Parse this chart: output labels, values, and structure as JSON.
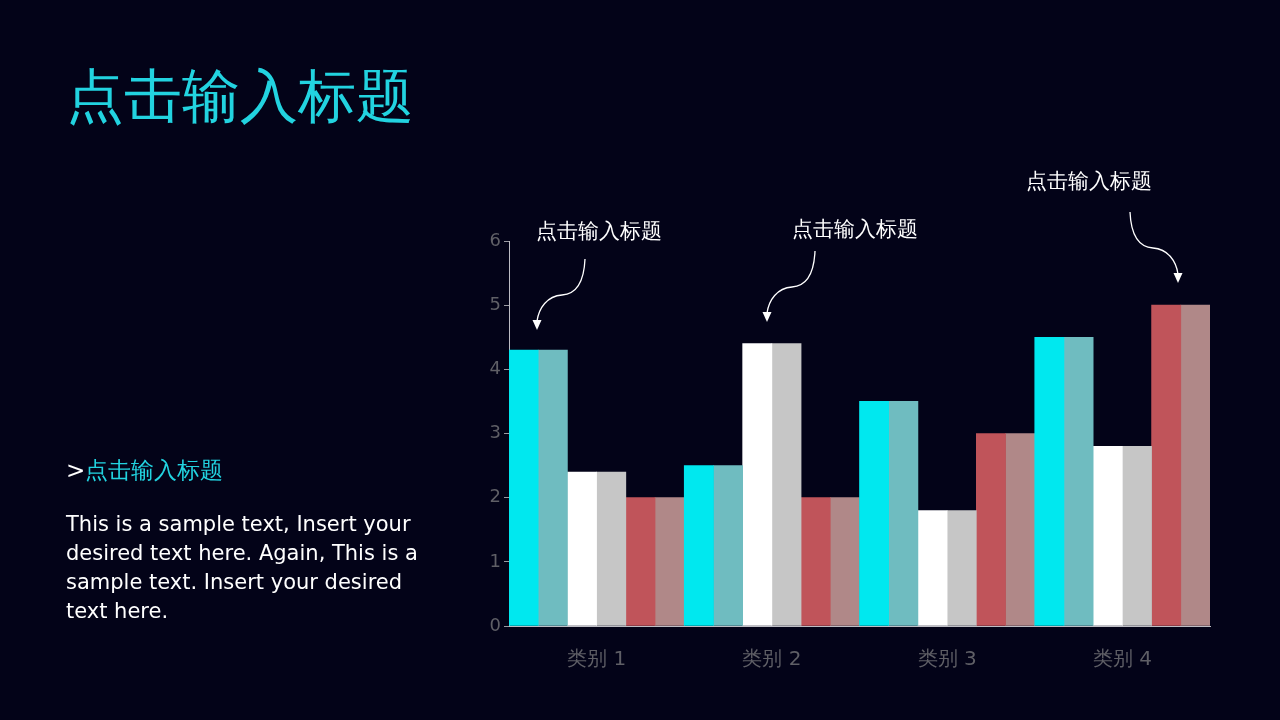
{
  "chart_data": {
    "type": "bar",
    "title": "点击输入标题",
    "subtitle": ">点击输入标题",
    "categories": [
      "类别 1",
      "类别 2",
      "类别 3",
      "类别 4"
    ],
    "series": [
      {
        "color": "#00e8ef",
        "values": [
          4.3,
          2.5,
          3.5,
          4.5
        ]
      },
      {
        "color": "#6fbcc0",
        "values": [
          4.3,
          2.5,
          3.5,
          4.5
        ]
      },
      {
        "color": "#ffffff",
        "values": [
          2.4,
          4.4,
          1.8,
          2.8
        ]
      },
      {
        "color": "#c6c6c6",
        "values": [
          2.4,
          4.4,
          1.8,
          2.8
        ]
      },
      {
        "color": "#c0545a",
        "values": [
          2,
          2,
          3,
          5
        ]
      },
      {
        "color": "#b08888",
        "values": [
          2,
          2,
          3,
          5
        ]
      }
    ],
    "ylim": [
      0,
      6
    ],
    "yticks": [
      0,
      1,
      2,
      3,
      4,
      5,
      6
    ],
    "grid": false,
    "legend": false,
    "annotations": [
      "点击输入标题",
      "点击输入标题",
      "点击输入标题",
      "This is a sample text, Insert your desired text here. Again, This is a sample text. Insert your desired text here."
    ]
  }
}
